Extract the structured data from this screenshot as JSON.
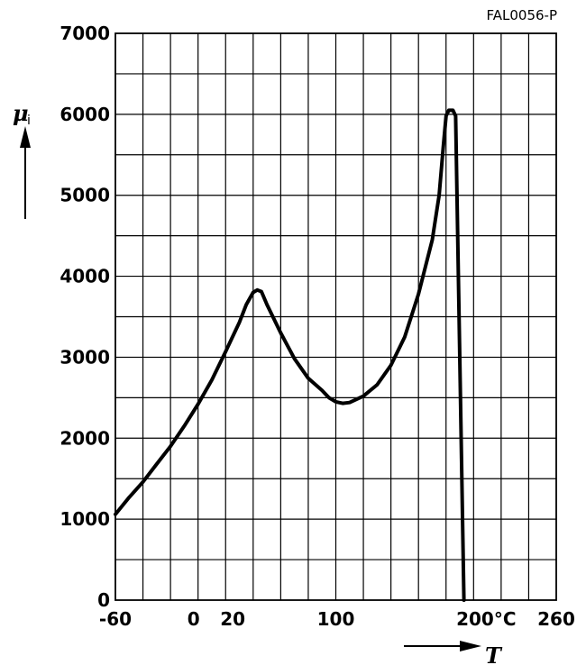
{
  "figure_code": "FAL0056-P",
  "chart_data": {
    "type": "line",
    "xlabel": "T",
    "ylabel_symbol": "μ",
    "ylabel_subscript": "i",
    "xlim": [
      -60,
      260
    ],
    "ylim": [
      0,
      7000
    ],
    "x_ticks": [
      {
        "value": -60,
        "label": "-60"
      },
      {
        "value": 0,
        "label": "0"
      },
      {
        "value": 20,
        "label": "20"
      },
      {
        "value": 100,
        "label": "100"
      },
      {
        "value": 200,
        "label": "200°C"
      },
      {
        "value": 260,
        "label": "260"
      }
    ],
    "y_ticks": [
      {
        "value": 0,
        "label": "0"
      },
      {
        "value": 1000,
        "label": "1000"
      },
      {
        "value": 2000,
        "label": "2000"
      },
      {
        "value": 3000,
        "label": "3000"
      },
      {
        "value": 4000,
        "label": "4000"
      },
      {
        "value": 5000,
        "label": "5000"
      },
      {
        "value": 6000,
        "label": "6000"
      },
      {
        "value": 7000,
        "label": "7000"
      }
    ],
    "grid": true,
    "grid_step_x": 20,
    "grid_step_y": 500,
    "line_color": "#000000",
    "series": [
      {
        "points": [
          [
            -60,
            1060
          ],
          [
            -50,
            1270
          ],
          [
            -40,
            1460
          ],
          [
            -30,
            1680
          ],
          [
            -20,
            1900
          ],
          [
            -10,
            2150
          ],
          [
            0,
            2420
          ],
          [
            10,
            2720
          ],
          [
            20,
            3070
          ],
          [
            30,
            3430
          ],
          [
            35,
            3650
          ],
          [
            40,
            3800
          ],
          [
            43,
            3830
          ],
          [
            46,
            3810
          ],
          [
            50,
            3650
          ],
          [
            60,
            3300
          ],
          [
            70,
            2980
          ],
          [
            80,
            2740
          ],
          [
            90,
            2590
          ],
          [
            95,
            2500
          ],
          [
            100,
            2450
          ],
          [
            105,
            2430
          ],
          [
            110,
            2440
          ],
          [
            120,
            2520
          ],
          [
            130,
            2660
          ],
          [
            140,
            2900
          ],
          [
            150,
            3250
          ],
          [
            160,
            3780
          ],
          [
            170,
            4450
          ],
          [
            175,
            5000
          ],
          [
            178,
            5600
          ],
          [
            180,
            5980
          ],
          [
            182,
            6050
          ],
          [
            185,
            6050
          ],
          [
            187,
            5980
          ],
          [
            193,
            0
          ]
        ]
      }
    ]
  }
}
